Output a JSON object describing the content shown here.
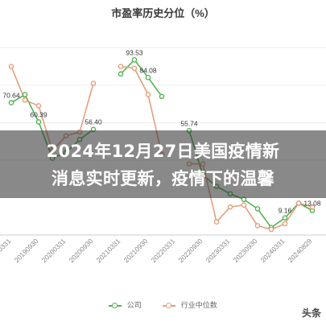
{
  "headline": {
    "line1": "2024年12月27日美国疫情新",
    "line2": "消息实时更新，疫情下的温馨"
  },
  "watermark": "头条",
  "chart_data": {
    "type": "line",
    "title": "市盈率历史分位（%）",
    "xlabel": "",
    "ylabel": "",
    "ylim": [
      0,
      110
    ],
    "grid": true,
    "legend_position": "bottom",
    "x": [
      "20190331",
      "",
      "20190930",
      "",
      "20200331",
      "",
      "20200930",
      "",
      "20210331",
      "",
      "20210930",
      "",
      "20220331",
      "",
      "20220930",
      "",
      "20230331",
      "",
      "20230930",
      "",
      "20240331",
      "",
      "20240829"
    ],
    "series": [
      {
        "name": "公司",
        "color": "#52b352",
        "values": [
          70.64,
          75,
          60.39,
          41,
          44,
          51,
          56.4,
          null,
          86,
          93.53,
          84.08,
          74,
          null,
          55.74,
          32,
          26,
          22,
          19,
          14,
          4,
          9.16,
          17,
          13.08
        ]
      },
      {
        "name": "行业中位数",
        "color": "#e3a07e",
        "values": [
          90,
          72,
          69,
          45,
          53,
          55,
          81,
          null,
          90,
          89,
          75,
          43,
          null,
          38,
          38,
          7,
          15,
          16,
          5,
          3,
          6,
          17,
          15
        ]
      }
    ],
    "data_labels": [
      {
        "series": 0,
        "index": 0,
        "text": "70.64"
      },
      {
        "series": 0,
        "index": 2,
        "text": "60.39"
      },
      {
        "series": 0,
        "index": 6,
        "text": "56.40"
      },
      {
        "series": 0,
        "index": 9,
        "text": "93.53"
      },
      {
        "series": 0,
        "index": 10,
        "text": "84.08"
      },
      {
        "series": 0,
        "index": 13,
        "text": "55.74"
      },
      {
        "series": 0,
        "index": 20,
        "text": "9.16"
      },
      {
        "series": 0,
        "index": 22,
        "text": "13.08"
      }
    ]
  }
}
